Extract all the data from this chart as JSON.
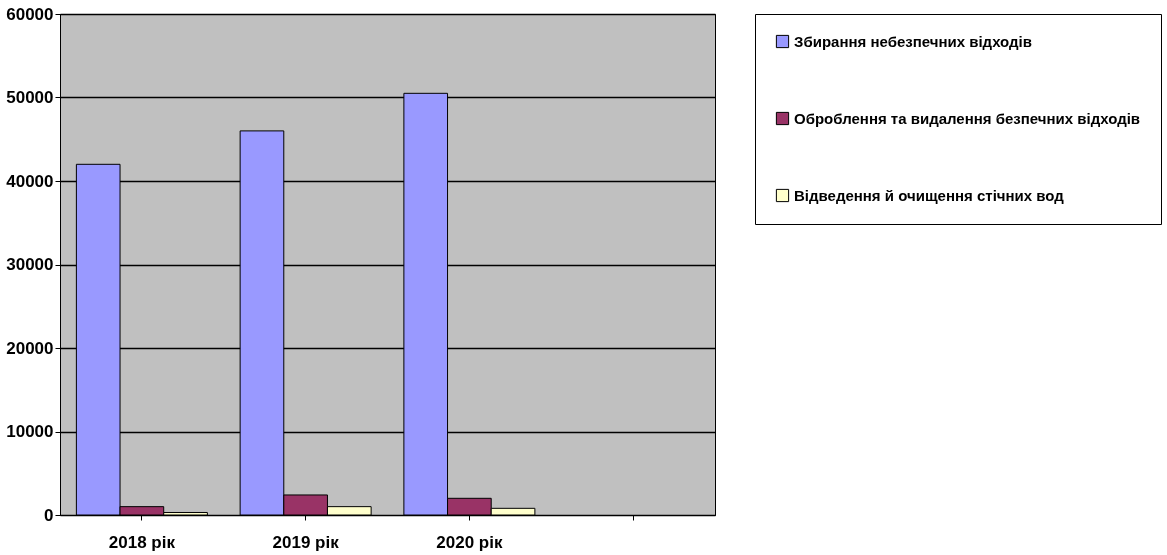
{
  "chart_data": {
    "type": "bar",
    "categories": [
      "2018 рік",
      "2019 рік",
      "2020 рік",
      null
    ],
    "series": [
      {
        "name": "Збирання небезпечних відходів",
        "color": "#9999ff",
        "values": [
          42000,
          46000,
          50500,
          null
        ]
      },
      {
        "name": "Оброблення та видалення безпечних відходів",
        "color": "#993366",
        "values": [
          1000,
          2400,
          2000,
          null
        ]
      },
      {
        "name": "Відведення й очищення стічних вод",
        "color": "#ffffcc",
        "values": [
          300,
          1000,
          800,
          null
        ]
      }
    ],
    "ylim": [
      0,
      60000
    ],
    "yticks": [
      0,
      10000,
      20000,
      30000,
      40000,
      50000,
      60000
    ],
    "grid": "y",
    "legend": "right"
  }
}
